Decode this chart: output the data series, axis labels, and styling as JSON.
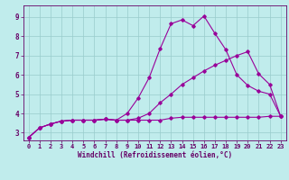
{
  "xlabel": "Windchill (Refroidissement éolien,°C)",
  "bg_color": "#c0ecec",
  "line_color": "#990099",
  "grid_color": "#99cccc",
  "axis_color": "#660066",
  "spine_color": "#660066",
  "xlim": [
    -0.5,
    23.5
  ],
  "ylim": [
    2.6,
    9.6
  ],
  "xticks": [
    0,
    1,
    2,
    3,
    4,
    5,
    6,
    7,
    8,
    9,
    10,
    11,
    12,
    13,
    14,
    15,
    16,
    17,
    18,
    19,
    20,
    21,
    22,
    23
  ],
  "yticks": [
    3,
    4,
    5,
    6,
    7,
    8,
    9
  ],
  "line1_x": [
    0,
    1,
    2,
    3,
    4,
    5,
    6,
    7,
    8,
    9,
    10,
    11,
    12,
    13,
    14,
    15,
    16,
    17,
    18,
    19,
    20,
    21,
    22,
    23
  ],
  "line1_y": [
    2.75,
    3.25,
    3.45,
    3.6,
    3.65,
    3.65,
    3.65,
    3.7,
    3.65,
    4.0,
    4.8,
    5.85,
    7.35,
    8.65,
    8.85,
    8.55,
    9.05,
    8.15,
    7.3,
    6.0,
    5.45,
    5.15,
    5.0,
    3.85
  ],
  "line2_x": [
    0,
    1,
    2,
    3,
    4,
    5,
    6,
    7,
    8,
    9,
    10,
    11,
    12,
    13,
    14,
    15,
    16,
    17,
    18,
    19,
    20,
    21,
    22,
    23
  ],
  "line2_y": [
    2.75,
    3.25,
    3.45,
    3.6,
    3.65,
    3.65,
    3.65,
    3.7,
    3.65,
    3.65,
    3.65,
    3.65,
    3.65,
    3.75,
    3.8,
    3.8,
    3.8,
    3.8,
    3.8,
    3.8,
    3.8,
    3.8,
    3.85,
    3.85
  ],
  "line3_x": [
    0,
    1,
    2,
    3,
    4,
    5,
    6,
    7,
    8,
    9,
    10,
    11,
    12,
    13,
    14,
    15,
    16,
    17,
    18,
    19,
    20,
    21,
    22,
    23
  ],
  "line3_y": [
    2.75,
    3.25,
    3.45,
    3.6,
    3.65,
    3.65,
    3.65,
    3.7,
    3.65,
    3.65,
    3.75,
    4.0,
    4.55,
    5.0,
    5.5,
    5.85,
    6.2,
    6.5,
    6.75,
    7.0,
    7.2,
    6.05,
    5.5,
    3.85
  ],
  "tick_fontsize": 5.0,
  "xlabel_fontsize": 5.5,
  "marker_size": 1.8,
  "line_width": 0.8
}
